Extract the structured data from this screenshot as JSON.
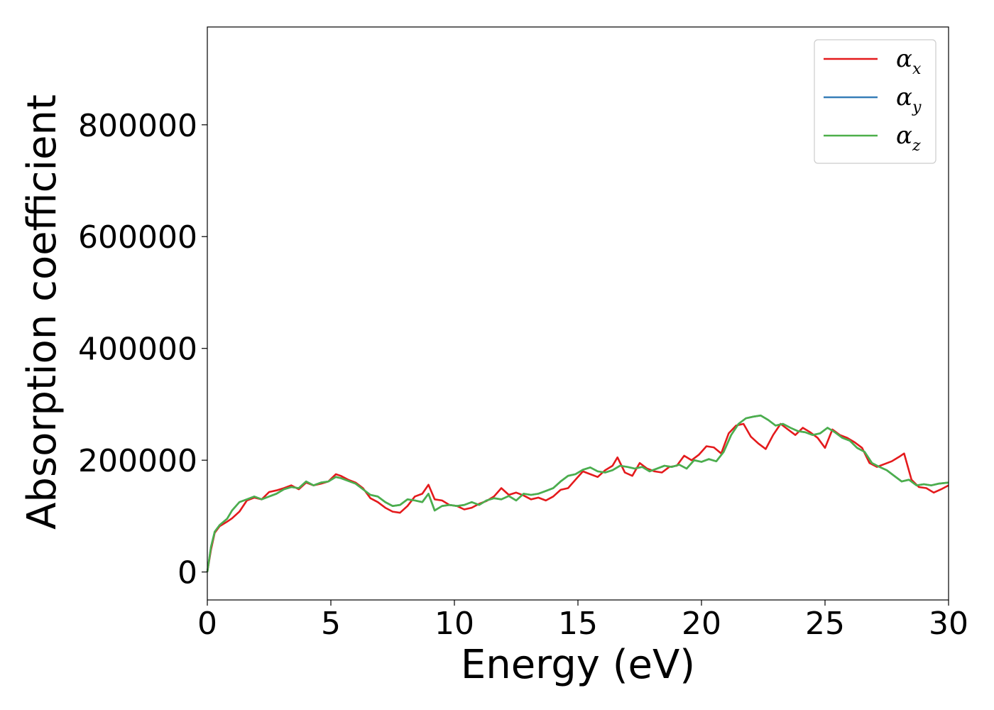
{
  "chart_data": {
    "type": "line",
    "xlabel": "Energy (eV)",
    "ylabel": "Absorption coefficient",
    "xlim": [
      0,
      30
    ],
    "ylim": [
      -50000,
      975000
    ],
    "xticks": [
      0,
      5,
      10,
      15,
      20,
      25,
      30
    ],
    "xtick_labels": [
      "0",
      "5",
      "10",
      "15",
      "20",
      "25",
      "30"
    ],
    "yticks": [
      0,
      200000,
      400000,
      600000,
      800000
    ],
    "ytick_labels": [
      "0",
      "200000",
      "400000",
      "600000",
      "800000"
    ],
    "grid": false,
    "legend_position": "top-right",
    "series": [
      {
        "name": "α_x",
        "legend_base": "α",
        "legend_sub": "x",
        "color": "#e41a1c",
        "x": [
          0,
          0.15,
          0.3,
          0.5,
          0.8,
          1.0,
          1.3,
          1.6,
          1.9,
          2.2,
          2.5,
          2.8,
          3.1,
          3.4,
          3.7,
          4.0,
          4.3,
          4.6,
          4.9,
          5.2,
          5.4,
          5.7,
          6.0,
          6.3,
          6.6,
          6.9,
          7.2,
          7.5,
          7.8,
          8.1,
          8.4,
          8.7,
          8.95,
          9.2,
          9.5,
          9.8,
          10.1,
          10.4,
          10.7,
          11.0,
          11.3,
          11.6,
          11.9,
          12.2,
          12.5,
          12.8,
          13.1,
          13.4,
          13.7,
          14.0,
          14.3,
          14.6,
          14.9,
          15.2,
          15.5,
          15.8,
          16.1,
          16.4,
          16.6,
          16.9,
          17.2,
          17.5,
          17.8,
          18.1,
          18.4,
          18.7,
          19.0,
          19.3,
          19.6,
          19.9,
          20.2,
          20.5,
          20.8,
          21.1,
          21.4,
          21.7,
          22.0,
          22.3,
          22.6,
          22.9,
          23.2,
          23.5,
          23.8,
          24.1,
          24.4,
          24.7,
          25.0,
          25.3,
          25.6,
          25.9,
          26.2,
          26.5,
          26.8,
          27.1,
          27.4,
          27.7,
          28.0,
          28.2,
          28.5,
          28.8,
          29.1,
          29.4,
          29.7,
          30.0
        ],
        "y": [
          0,
          40000,
          70000,
          82000,
          90000,
          96000,
          108000,
          128000,
          133000,
          130000,
          143000,
          146000,
          150000,
          155000,
          148000,
          160000,
          155000,
          158000,
          162000,
          175000,
          172000,
          165000,
          160000,
          150000,
          132000,
          125000,
          115000,
          108000,
          106000,
          118000,
          135000,
          140000,
          156000,
          130000,
          128000,
          120000,
          118000,
          112000,
          115000,
          122000,
          127000,
          135000,
          150000,
          138000,
          142000,
          137000,
          130000,
          133000,
          128000,
          135000,
          147000,
          150000,
          165000,
          180000,
          175000,
          170000,
          182000,
          190000,
          205000,
          178000,
          172000,
          195000,
          185000,
          180000,
          178000,
          188000,
          190000,
          208000,
          200000,
          210000,
          225000,
          223000,
          212000,
          248000,
          262000,
          265000,
          242000,
          230000,
          220000,
          245000,
          265000,
          255000,
          245000,
          258000,
          250000,
          240000,
          222000,
          255000,
          245000,
          240000,
          232000,
          222000,
          195000,
          188000,
          193000,
          198000,
          206000,
          212000,
          165000,
          152000,
          150000,
          142000,
          148000,
          155000
        ]
      },
      {
        "name": "α_y",
        "legend_base": "α",
        "legend_sub": "y",
        "color": "#377eb8",
        "x": [
          0,
          0.15,
          0.3,
          0.5,
          0.8,
          1.0,
          1.3,
          1.6,
          1.9,
          2.2,
          2.5,
          2.8,
          3.1,
          3.4,
          3.7,
          4.0,
          4.3,
          4.6,
          4.9,
          5.2,
          5.4,
          5.7,
          6.0,
          6.3,
          6.6,
          6.9,
          7.2,
          7.5,
          7.8,
          8.1,
          8.4,
          8.7,
          8.95,
          9.2,
          9.5,
          9.8,
          10.1,
          10.4,
          10.7,
          11.0,
          11.3,
          11.6,
          11.9,
          12.2,
          12.5,
          12.8,
          13.1,
          13.4,
          13.7,
          14.0,
          14.3,
          14.6,
          14.9,
          15.2,
          15.5,
          15.8,
          16.1,
          16.4,
          16.7,
          17.0,
          17.3,
          17.6,
          17.9,
          18.2,
          18.5,
          18.8,
          19.1,
          19.4,
          19.7,
          20.0,
          20.3,
          20.6,
          20.9,
          21.2,
          21.5,
          21.8,
          22.1,
          22.4,
          22.7,
          23.0,
          23.3,
          23.6,
          23.9,
          24.2,
          24.5,
          24.8,
          25.1,
          25.4,
          25.7,
          26.0,
          26.3,
          26.6,
          26.9,
          27.2,
          27.5,
          27.8,
          28.1,
          28.4,
          28.7,
          29.0,
          29.3,
          29.6,
          30.0
        ],
        "y": [
          0,
          45000,
          72000,
          84000,
          95000,
          110000,
          125000,
          130000,
          135000,
          130000,
          135000,
          140000,
          148000,
          152000,
          150000,
          162000,
          155000,
          160000,
          162000,
          170000,
          168000,
          163000,
          158000,
          148000,
          138000,
          135000,
          125000,
          118000,
          120000,
          130000,
          128000,
          125000,
          140000,
          110000,
          118000,
          120000,
          118000,
          120000,
          125000,
          120000,
          128000,
          132000,
          130000,
          136000,
          128000,
          140000,
          138000,
          140000,
          145000,
          150000,
          162000,
          172000,
          175000,
          183000,
          187000,
          180000,
          178000,
          182000,
          190000,
          188000,
          185000,
          188000,
          180000,
          185000,
          190000,
          188000,
          192000,
          185000,
          200000,
          197000,
          202000,
          198000,
          215000,
          245000,
          265000,
          275000,
          278000,
          280000,
          272000,
          262000,
          265000,
          258000,
          252000,
          250000,
          245000,
          248000,
          258000,
          250000,
          240000,
          235000,
          222000,
          215000,
          195000,
          188000,
          182000,
          172000,
          162000,
          165000,
          155000,
          157000,
          155000,
          158000,
          160000
        ]
      },
      {
        "name": "α_z",
        "legend_base": "α",
        "legend_sub": "z",
        "color": "#4daf4a",
        "x": [
          0,
          0.15,
          0.3,
          0.5,
          0.8,
          1.0,
          1.3,
          1.6,
          1.9,
          2.2,
          2.5,
          2.8,
          3.1,
          3.4,
          3.7,
          4.0,
          4.3,
          4.6,
          4.9,
          5.2,
          5.4,
          5.7,
          6.0,
          6.3,
          6.6,
          6.9,
          7.2,
          7.5,
          7.8,
          8.1,
          8.4,
          8.7,
          8.95,
          9.2,
          9.5,
          9.8,
          10.1,
          10.4,
          10.7,
          11.0,
          11.3,
          11.6,
          11.9,
          12.2,
          12.5,
          12.8,
          13.1,
          13.4,
          13.7,
          14.0,
          14.3,
          14.6,
          14.9,
          15.2,
          15.5,
          15.8,
          16.1,
          16.4,
          16.7,
          17.0,
          17.3,
          17.6,
          17.9,
          18.2,
          18.5,
          18.8,
          19.1,
          19.4,
          19.7,
          20.0,
          20.3,
          20.6,
          20.9,
          21.2,
          21.5,
          21.8,
          22.1,
          22.4,
          22.7,
          23.0,
          23.3,
          23.6,
          23.9,
          24.2,
          24.5,
          24.8,
          25.1,
          25.4,
          25.7,
          26.0,
          26.3,
          26.6,
          26.9,
          27.2,
          27.5,
          27.8,
          28.1,
          28.4,
          28.7,
          29.0,
          29.3,
          29.6,
          30.0
        ],
        "y": [
          0,
          45000,
          72000,
          84000,
          95000,
          110000,
          125000,
          130000,
          135000,
          130000,
          135000,
          140000,
          148000,
          152000,
          150000,
          162000,
          155000,
          160000,
          162000,
          170000,
          168000,
          163000,
          158000,
          148000,
          138000,
          135000,
          125000,
          118000,
          120000,
          130000,
          128000,
          125000,
          140000,
          110000,
          118000,
          120000,
          118000,
          120000,
          125000,
          120000,
          128000,
          132000,
          130000,
          136000,
          128000,
          140000,
          138000,
          140000,
          145000,
          150000,
          162000,
          172000,
          175000,
          183000,
          187000,
          180000,
          178000,
          182000,
          190000,
          188000,
          185000,
          188000,
          180000,
          185000,
          190000,
          188000,
          192000,
          185000,
          200000,
          197000,
          202000,
          198000,
          215000,
          245000,
          265000,
          275000,
          278000,
          280000,
          272000,
          262000,
          265000,
          258000,
          252000,
          250000,
          245000,
          248000,
          258000,
          250000,
          240000,
          235000,
          222000,
          215000,
          195000,
          188000,
          182000,
          172000,
          162000,
          165000,
          155000,
          157000,
          155000,
          158000,
          160000
        ]
      }
    ]
  }
}
